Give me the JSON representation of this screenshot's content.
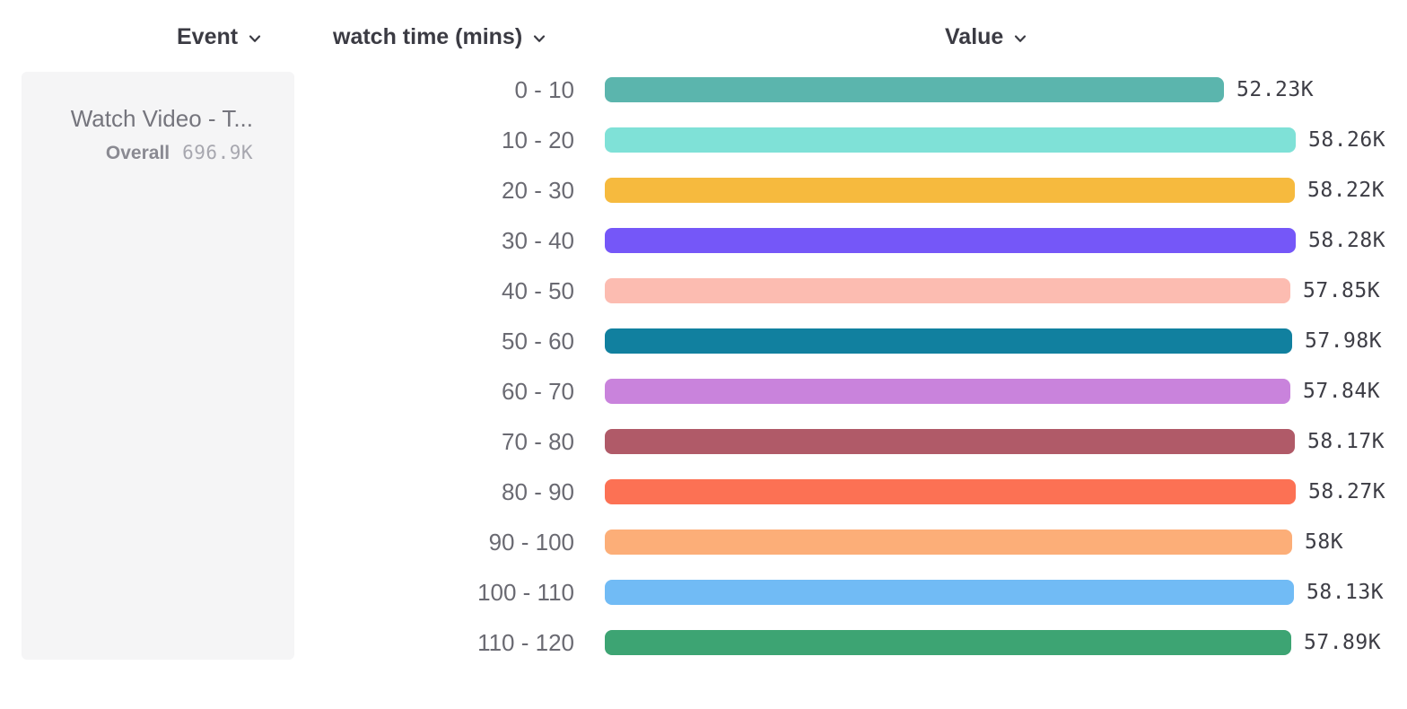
{
  "header": {
    "columns": [
      {
        "id": "event",
        "label": "Event"
      },
      {
        "id": "breakdown",
        "label": "watch time (mins)"
      },
      {
        "id": "value",
        "label": "Value"
      }
    ]
  },
  "legend_panel": {
    "event_name": "Watch Video - T...",
    "overall_label": "Overall",
    "overall_value": "696.9K"
  },
  "chart_data": {
    "type": "bar",
    "orientation": "horizontal",
    "title": "",
    "xlabel": "Value",
    "ylabel": "watch time (mins)",
    "legend_position": "left",
    "grid": false,
    "max_value": 58280,
    "categories": [
      "0 - 10",
      "10 - 20",
      "20 - 30",
      "30 - 40",
      "40 - 50",
      "50 - 60",
      "60 - 70",
      "70 - 80",
      "80 - 90",
      "90 - 100",
      "100 - 110",
      "110 - 120"
    ],
    "values": [
      52230,
      58260,
      58220,
      58280,
      57850,
      57980,
      57840,
      58170,
      58270,
      58000,
      58130,
      57890
    ],
    "value_labels": [
      "52.23K",
      "58.26K",
      "58.22K",
      "58.28K",
      "57.85K",
      "57.98K",
      "57.84K",
      "58.17K",
      "58.27K",
      "58K",
      "58.13K",
      "57.89K"
    ],
    "bar_colors": [
      "#5bb5ad",
      "#7fe1d7",
      "#f6ba3e",
      "#7557f8",
      "#fcbcb1",
      "#11809f",
      "#c983dc",
      "#b05a68",
      "#fc7154",
      "#fcae78",
      "#71bbf5",
      "#3da473"
    ]
  },
  "colors": {
    "panel_bg": "#f5f5f6",
    "header_text": "#3b3b43",
    "category_text": "#6a6a72",
    "value_text": "#3d3d45"
  },
  "icons": {
    "chevron_down": "v"
  }
}
